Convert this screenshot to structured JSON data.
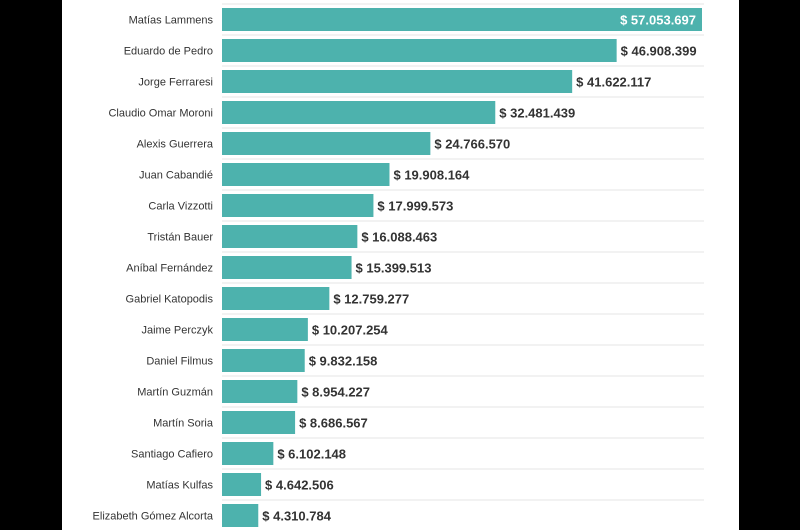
{
  "chart_data": {
    "type": "bar",
    "orientation": "horizontal",
    "categories": [
      "Matías Lammens",
      "Eduardo de Pedro",
      "Jorge Ferraresi",
      "Claudio Omar Moroni",
      "Alexis Guerrera",
      "Juan Cabandié",
      "Carla Vizzotti",
      "Tristán Bauer",
      "Aníbal Fernández",
      "Gabriel Katopodis",
      "Jaime Perczyk",
      "Daniel Filmus",
      "Martín Guzmán",
      "Martín Soria",
      "Santiago Cafiero",
      "Matías Kulfas",
      "Elizabeth Gómez Alcorta"
    ],
    "values": [
      57053697,
      46908399,
      41622117,
      32481439,
      24766570,
      19908164,
      17999573,
      16088463,
      15399513,
      12759277,
      10207254,
      9832158,
      8954227,
      8686567,
      6102148,
      4642506,
      4310784
    ],
    "value_labels": [
      "$ 57.053.697",
      "$ 46.908.399",
      "$ 41.622.117",
      "$ 32.481.439",
      "$ 24.766.570",
      "$ 19.908.164",
      "$ 17.999.573",
      "$ 16.088.463",
      "$ 15.399.513",
      "$ 12.759.277",
      "$ 10.207.254",
      "$ 9.832.158",
      "$ 8.954.227",
      "$ 8.686.567",
      "$ 6.102.148",
      "$ 4.642.506",
      "$ 4.310.784"
    ],
    "title": "",
    "xlabel": "",
    "ylabel": "",
    "xlim": [
      0,
      57053697
    ],
    "grid": true,
    "legend": "none",
    "colors": {
      "bar": "#4db2ad",
      "label_outside": "#333333",
      "label_inside": "#ffffff",
      "grid": "#e6e6e6"
    }
  }
}
